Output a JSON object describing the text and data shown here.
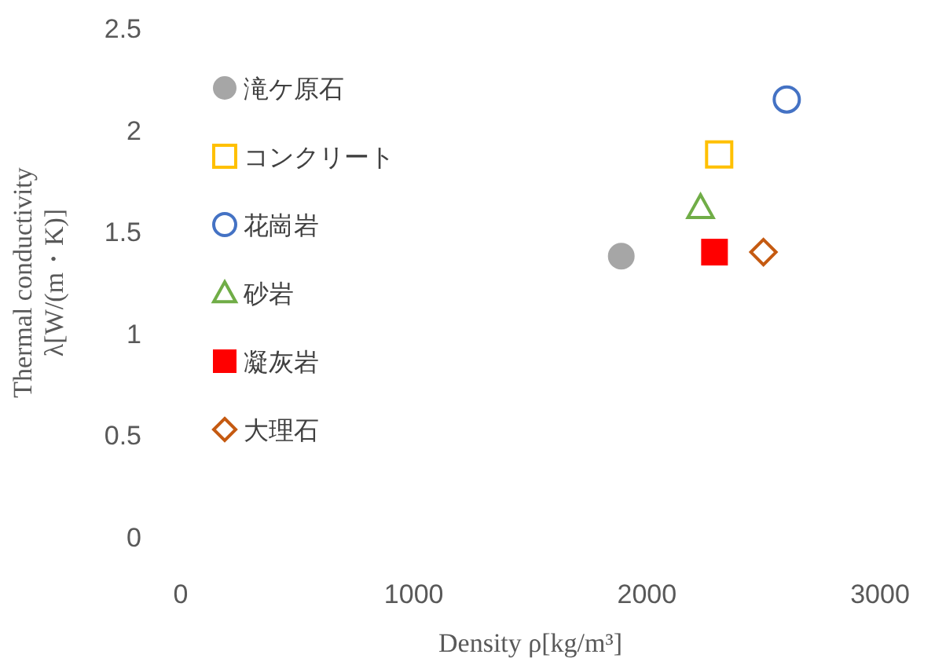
{
  "chart_data": {
    "type": "scatter",
    "xlabel": "Density ρ[kg/m³]",
    "ylabel": "Thermal conductivity\nλ[W/(m・K)]",
    "xlim": [
      0,
      3000
    ],
    "xticks": [
      0,
      1000,
      2000,
      3000
    ],
    "ylim": [
      0,
      2.5
    ],
    "yticks": [
      0,
      0.5,
      1,
      1.5,
      2,
      2.5
    ],
    "grid": false,
    "legend": "top left",
    "series": [
      {
        "name": "滝ケ原石",
        "color": "#a6a6a6",
        "marker": "circle",
        "x": [
          1890
        ],
        "values": [
          1.38
        ]
      },
      {
        "name": "コンクリート",
        "color": "#ffc000",
        "marker": "square",
        "x": [
          2310
        ],
        "values": [
          1.88
        ]
      },
      {
        "name": "花崗岩",
        "color": "#4472c4",
        "marker": "circle",
        "x": [
          2600
        ],
        "values": [
          2.15
        ]
      },
      {
        "name": "砂岩",
        "color": "#70ad47",
        "marker": "triangle",
        "x": [
          2230
        ],
        "values": [
          1.62
        ]
      },
      {
        "name": "凝灰岩",
        "color": "#ff0000",
        "marker": "square",
        "x": [
          2290
        ],
        "values": [
          1.4
        ]
      },
      {
        "name": "大理石",
        "color": "#c55a11",
        "marker": "diamond",
        "x": [
          2500
        ],
        "values": [
          1.4
        ]
      }
    ]
  }
}
